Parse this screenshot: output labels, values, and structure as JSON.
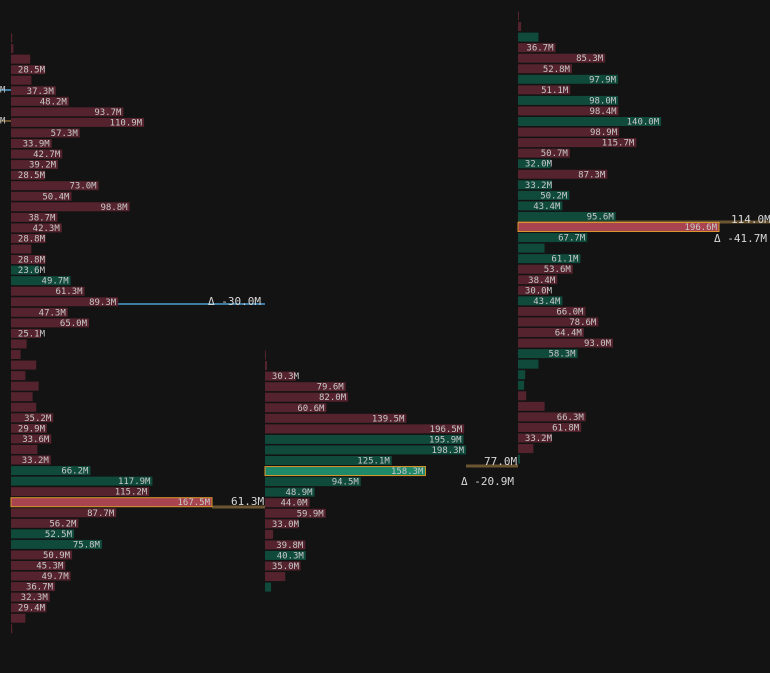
{
  "chart_data": [
    {
      "type": "bar",
      "xlim": [
        0,
        167.5
      ],
      "values": [
        1,
        2,
        16,
        28.5,
        17,
        37.3,
        48.2,
        93.7,
        110.9,
        57.3,
        33.9,
        42.7,
        39.2,
        28.5,
        73.0,
        50.4,
        98.8,
        38.7,
        42.3,
        28.8,
        17,
        28.8,
        23.6,
        49.7,
        61.3,
        89.3,
        47.3,
        65.0,
        25.1,
        13,
        8,
        21,
        12,
        23,
        18,
        21,
        35.2,
        29.9,
        33.6,
        22,
        33.2,
        66.2,
        117.9,
        115.2,
        167.5,
        87.7,
        56.2,
        52.5,
        75.8,
        50.9,
        45.3,
        49.7,
        36.7,
        32.3,
        29.4,
        12,
        1
      ],
      "value_labels": [
        null,
        null,
        null,
        "28.5M",
        null,
        "37.3M",
        "48.2M",
        "93.7M",
        "110.9M",
        "57.3M",
        "33.9M",
        "42.7M",
        "39.2M",
        "28.5M",
        "73.0M",
        "50.4M",
        "98.8M",
        "38.7M",
        "42.3M",
        "28.8M",
        null,
        "28.8M",
        "23.6M",
        "49.7M",
        "61.3M",
        "89.3M",
        "47.3M",
        "65.0M",
        "25.1M",
        null,
        null,
        null,
        null,
        null,
        null,
        null,
        "35.2M",
        "29.9M",
        "33.6M",
        null,
        "33.2M",
        "66.2M",
        "117.9M",
        "115.2M",
        "167.5M",
        "87.7M",
        "56.2M",
        "52.5M",
        "75.8M",
        "50.9M",
        "45.3M",
        "49.7M",
        "36.7M",
        "32.3M",
        "29.4M",
        null,
        null
      ],
      "buy_rows": [
        22,
        23,
        41,
        42,
        47,
        48
      ],
      "highlight_row": 44,
      "annotations": [
        "M",
        "M",
        "Δ -30.0M",
        "61.3M"
      ]
    },
    {
      "type": "bar",
      "xlim": [
        0,
        198.3
      ],
      "values": [
        1,
        2,
        30.3,
        79.6,
        82.0,
        60.6,
        139.5,
        196.5,
        195.9,
        198.3,
        125.1,
        158.3,
        94.5,
        48.9,
        44.0,
        59.9,
        33.0,
        8,
        39.8,
        40.3,
        35.0,
        20,
        6
      ],
      "value_labels": [
        null,
        null,
        "30.3M",
        "79.6M",
        "82.0M",
        "60.6M",
        "139.5M",
        "196.5M",
        "195.9M",
        "198.3M",
        "125.1M",
        "158.3M",
        "94.5M",
        "48.9M",
        "44.0M",
        "59.9M",
        "33.0M",
        null,
        "39.8M",
        "40.3M",
        "35.0M",
        null,
        null
      ],
      "buy_rows": [
        8,
        9,
        10,
        11,
        12,
        13,
        19,
        22
      ],
      "highlight_row": 11,
      "annotations": [
        "77.0M",
        "Δ -20.9M"
      ]
    },
    {
      "type": "bar",
      "xlim": [
        0,
        196.6
      ],
      "values": [
        1,
        3,
        20,
        36.7,
        85.3,
        52.8,
        97.9,
        51.1,
        98.0,
        98.4,
        140.0,
        98.9,
        115.7,
        50.7,
        32.0,
        87.3,
        33.2,
        50.2,
        43.4,
        95.6,
        196.6,
        67.7,
        26,
        61.1,
        53.6,
        38.4,
        30.0,
        43.4,
        66.0,
        78.6,
        64.4,
        93.0,
        58.3,
        20,
        7,
        6,
        8,
        26,
        66.3,
        61.8,
        33.2,
        15,
        2
      ],
      "value_labels": [
        null,
        null,
        null,
        "36.7M",
        "85.3M",
        "52.8M",
        "97.9M",
        "51.1M",
        "98.0M",
        "98.4M",
        "140.0M",
        "98.9M",
        "115.7M",
        "50.7M",
        "32.0M",
        "87.3M",
        "33.2M",
        "50.2M",
        "43.4M",
        "95.6M",
        "196.6M",
        "67.7M",
        null,
        "61.1M",
        "53.6M",
        "38.4M",
        "30.0M",
        "43.4M",
        "66.0M",
        "78.6M",
        "64.4M",
        "93.0M",
        "58.3M",
        null,
        null,
        null,
        null,
        null,
        "66.3M",
        "61.8M",
        "33.2M",
        null,
        null
      ],
      "buy_rows": [
        2,
        6,
        8,
        10,
        14,
        16,
        17,
        18,
        19,
        21,
        22,
        23,
        27,
        32,
        33,
        34,
        35,
        42
      ],
      "highlight_row": 20,
      "annotations": [
        "114.0M",
        "Δ -41.7M"
      ]
    }
  ]
}
